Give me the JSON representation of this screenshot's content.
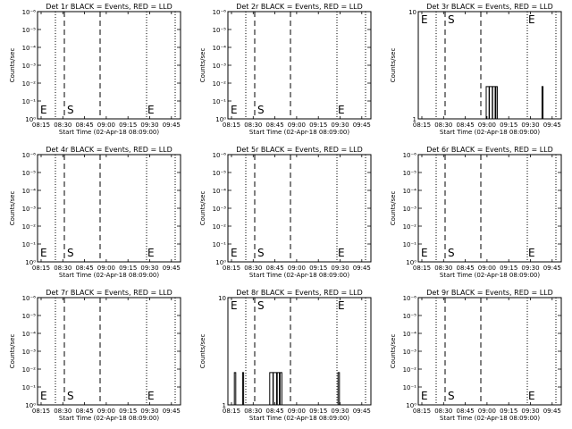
{
  "panel_layout": {
    "cols": 3,
    "rows": 3
  },
  "x_axis": {
    "label": "Start Time (02-Apr-18 08:09:00)",
    "tick_labels": [
      "08:15",
      "08:30",
      "08:45",
      "09:00",
      "09:15",
      "09:30",
      "09:45"
    ],
    "range_minutes": [
      10,
      50
    ]
  },
  "y_axis": {
    "label": "Counts/sec"
  },
  "chart_data": [
    {
      "title": "Det 1r BLACK = Events, RED = LLD",
      "type": "line",
      "yscale": "log",
      "y_tick_labels": [
        "10⁰",
        "10⁻¹",
        "10⁻²",
        "10⁻³",
        "10⁻⁴",
        "10⁻⁵",
        "10⁻⁶"
      ],
      "markers": [
        {
          "label": "E",
          "pos": "low"
        },
        {
          "label": "S",
          "pos": "low"
        },
        {
          "label": "E",
          "pos": "low"
        }
      ],
      "events": []
    },
    {
      "title": "Det 2r BLACK = Events, RED = LLD",
      "type": "line",
      "yscale": "log",
      "y_tick_labels": [
        "10⁰",
        "10⁻¹",
        "10⁻²",
        "10⁻³",
        "10⁻⁴",
        "10⁻⁵",
        "10⁻⁶"
      ],
      "markers": [
        {
          "label": "E",
          "pos": "low"
        },
        {
          "label": "S",
          "pos": "low"
        },
        {
          "label": "E",
          "pos": "low"
        }
      ],
      "events": []
    },
    {
      "title": "Det 3r BLACK = Events, RED = LLD",
      "type": "line",
      "yscale": "log",
      "y_tick_labels": [
        "1",
        "10"
      ],
      "markers": [
        {
          "label": "E",
          "pos": "high"
        },
        {
          "label": "S",
          "pos": "high"
        },
        {
          "label": "E",
          "pos": "high"
        }
      ],
      "events": [
        {
          "x0": 29.0,
          "x1": 29.8,
          "value": 2
        },
        {
          "x0": 29.9,
          "x1": 30.7,
          "value": 2
        },
        {
          "x0": 30.8,
          "x1": 31.5,
          "value": 2
        },
        {
          "x0": 31.7,
          "x1": 32.1,
          "value": 2
        },
        {
          "x0": 44.6,
          "x1": 44.9,
          "value": 2
        }
      ]
    },
    {
      "title": "Det 4r BLACK = Events, RED = LLD",
      "type": "line",
      "yscale": "log",
      "y_tick_labels": [
        "10⁰",
        "10⁻¹",
        "10⁻²",
        "10⁻³",
        "10⁻⁴",
        "10⁻⁵",
        "10⁻⁶"
      ],
      "markers": [
        {
          "label": "E",
          "pos": "low"
        },
        {
          "label": "S",
          "pos": "low"
        },
        {
          "label": "E",
          "pos": "low"
        }
      ],
      "events": []
    },
    {
      "title": "Det 5r BLACK = Events, RED = LLD",
      "type": "line",
      "yscale": "log",
      "y_tick_labels": [
        "10⁰",
        "10⁻¹",
        "10⁻²",
        "10⁻³",
        "10⁻⁴",
        "10⁻⁵",
        "10⁻⁶"
      ],
      "markers": [
        {
          "label": "E",
          "pos": "low"
        },
        {
          "label": "S",
          "pos": "low"
        },
        {
          "label": "E",
          "pos": "low"
        }
      ],
      "events": []
    },
    {
      "title": "Det 6r BLACK = Events, RED = LLD",
      "type": "line",
      "yscale": "log",
      "y_tick_labels": [
        "10⁰",
        "10⁻¹",
        "10⁻²",
        "10⁻³",
        "10⁻⁴",
        "10⁻⁵",
        "10⁻⁶"
      ],
      "markers": [
        {
          "label": "E",
          "pos": "low"
        },
        {
          "label": "S",
          "pos": "low"
        },
        {
          "label": "E",
          "pos": "low"
        }
      ],
      "events": []
    },
    {
      "title": "Det 7r BLACK = Events, RED = LLD",
      "type": "line",
      "yscale": "log",
      "y_tick_labels": [
        "10⁰",
        "10⁻¹",
        "10⁻²",
        "10⁻³",
        "10⁻⁴",
        "10⁻⁵",
        "10⁻⁶"
      ],
      "markers": [
        {
          "label": "E",
          "pos": "low"
        },
        {
          "label": "S",
          "pos": "low"
        },
        {
          "label": "E",
          "pos": "low"
        }
      ],
      "events": []
    },
    {
      "title": "Det 8r BLACK = Events, RED = LLD",
      "type": "line",
      "yscale": "log",
      "y_tick_labels": [
        "1",
        "10"
      ],
      "markers": [
        {
          "label": "E",
          "pos": "high"
        },
        {
          "label": "S",
          "pos": "high"
        },
        {
          "label": "E",
          "pos": "high"
        }
      ],
      "events": [
        {
          "x0": 11.8,
          "x1": 12.2,
          "value": 2
        },
        {
          "x0": 14.1,
          "x1": 14.4,
          "value": 2
        },
        {
          "x0": 21.7,
          "x1": 22.6,
          "value": 2
        },
        {
          "x0": 22.7,
          "x1": 23.6,
          "value": 2
        },
        {
          "x0": 23.8,
          "x1": 24.4,
          "value": 2
        },
        {
          "x0": 24.6,
          "x1": 25.1,
          "value": 2
        },
        {
          "x0": 40.8,
          "x1": 41.2,
          "value": 2
        }
      ]
    },
    {
      "title": "Det 9r BLACK = Events, RED = LLD",
      "type": "line",
      "yscale": "log",
      "y_tick_labels": [
        "10⁰",
        "10⁻¹",
        "10⁻²",
        "10⁻³",
        "10⁻⁴",
        "10⁻⁵",
        "10⁻⁶"
      ],
      "markers": [
        {
          "label": "E",
          "pos": "low"
        },
        {
          "label": "S",
          "pos": "low"
        },
        {
          "label": "E",
          "pos": "low"
        }
      ],
      "events": []
    }
  ],
  "vertical_lines": [
    {
      "x": 15.0,
      "style": "dotted"
    },
    {
      "x": 17.5,
      "style": "dashed"
    },
    {
      "x": 27.5,
      "style": "dashed"
    },
    {
      "x": 40.5,
      "style": "dotted"
    },
    {
      "x": 48.5,
      "style": "dotted"
    }
  ]
}
